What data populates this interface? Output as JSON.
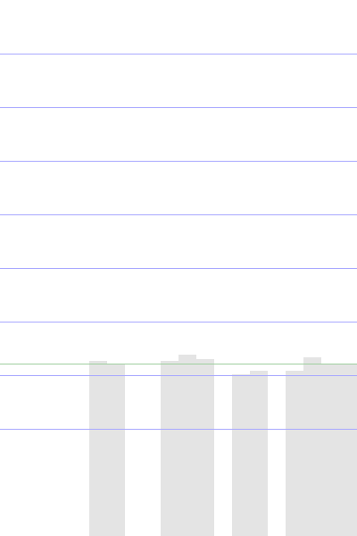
{
  "chart_data": {
    "type": "bar",
    "title": "",
    "xlabel": "",
    "ylabel": "",
    "x": [
      0,
      1,
      2,
      3,
      4,
      5,
      6,
      7,
      8,
      9,
      10,
      11,
      12,
      13,
      14,
      15,
      16,
      17,
      18,
      19
    ],
    "values": [
      0,
      0,
      0,
      0,
      0,
      196,
      192,
      0,
      0,
      196,
      203,
      198,
      0,
      181,
      185,
      0,
      185,
      200,
      193,
      193
    ],
    "ylim": [
      0,
      600
    ],
    "grid": true,
    "legend": false,
    "reference_line": 193,
    "colors": {
      "bar": "#e4e4e4",
      "grid": "#a8a8ff",
      "reference_line": "#9fcf9f"
    }
  }
}
